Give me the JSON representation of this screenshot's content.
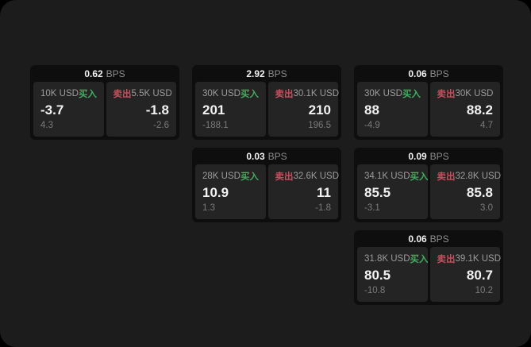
{
  "labels": {
    "bps": "BPS",
    "buy": "买入",
    "sell": "卖出"
  },
  "colors": {
    "window_bg": "#1c1c1c",
    "card_bg": "#0e0e0e",
    "panel_bg": "#242424",
    "buy_green": "#3eae5d",
    "sell_red": "#ce4b5e",
    "text_bright": "#f2f2f2",
    "text_label": "#9c9c9c",
    "text_dim": "#8d8d8d",
    "text_faint": "#7a7a7a"
  },
  "cards": [
    {
      "row": 1,
      "col": 1,
      "bps": "0.62",
      "buy": {
        "amount": "10K USD",
        "value": "-3.7",
        "delta": "4.3"
      },
      "sell": {
        "amount": "5.5K USD",
        "value": "-1.8",
        "delta": "-2.6"
      }
    },
    {
      "row": 1,
      "col": 2,
      "bps": "2.92",
      "buy": {
        "amount": "30K USD",
        "value": "201",
        "delta": "-188.1"
      },
      "sell": {
        "amount": "30.1K USD",
        "value": "210",
        "delta": "196.5"
      }
    },
    {
      "row": 1,
      "col": 3,
      "bps": "0.06",
      "buy": {
        "amount": "30K USD",
        "value": "88",
        "delta": "-4.9"
      },
      "sell": {
        "amount": "30K USD",
        "value": "88.2",
        "delta": "4.7"
      }
    },
    {
      "row": 2,
      "col": 2,
      "bps": "0.03",
      "buy": {
        "amount": "28K USD",
        "value": "10.9",
        "delta": "1.3"
      },
      "sell": {
        "amount": "32.6K USD",
        "value": "11",
        "delta": "-1.8"
      }
    },
    {
      "row": 2,
      "col": 3,
      "bps": "0.09",
      "buy": {
        "amount": "34.1K USD",
        "value": "85.5",
        "delta": "-3.1"
      },
      "sell": {
        "amount": "32.8K USD",
        "value": "85.8",
        "delta": "3.0"
      }
    },
    {
      "row": 3,
      "col": 3,
      "bps": "0.06",
      "buy": {
        "amount": "31.8K USD",
        "value": "80.5",
        "delta": "-10.8"
      },
      "sell": {
        "amount": "39.1K USD",
        "value": "80.7",
        "delta": "10.2"
      }
    }
  ]
}
